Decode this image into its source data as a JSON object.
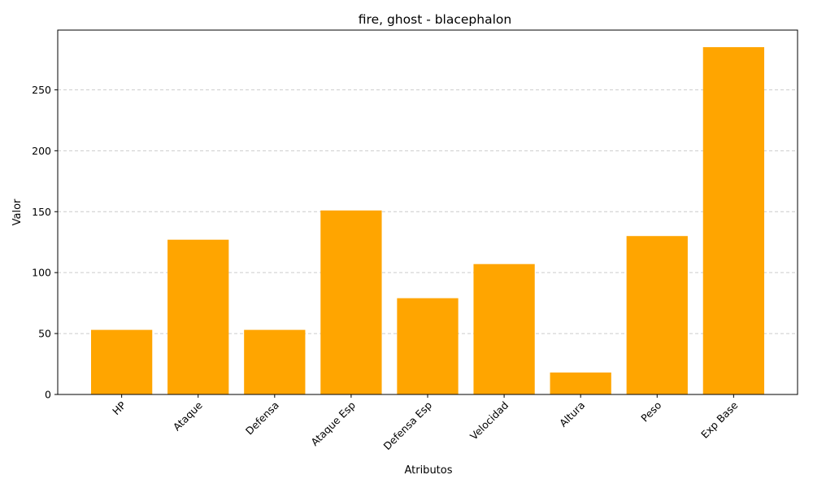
{
  "chart_data": {
    "type": "bar",
    "title": "fire, ghost - blacephalon",
    "xlabel": "Atributos",
    "ylabel": "Valor",
    "categories": [
      "HP",
      "Ataque",
      "Defensa",
      "Ataque Esp",
      "Defensa Esp",
      "Velocidad",
      "Altura",
      "Peso",
      "Exp Base"
    ],
    "values": [
      53,
      127,
      53,
      151,
      79,
      107,
      18,
      130,
      285
    ],
    "ylim": [
      0,
      299
    ],
    "yticks": [
      0,
      50,
      100,
      150,
      200,
      250
    ],
    "grid": "y-dashed",
    "bar_color": "#FFA500",
    "tick_rotation": 45
  }
}
